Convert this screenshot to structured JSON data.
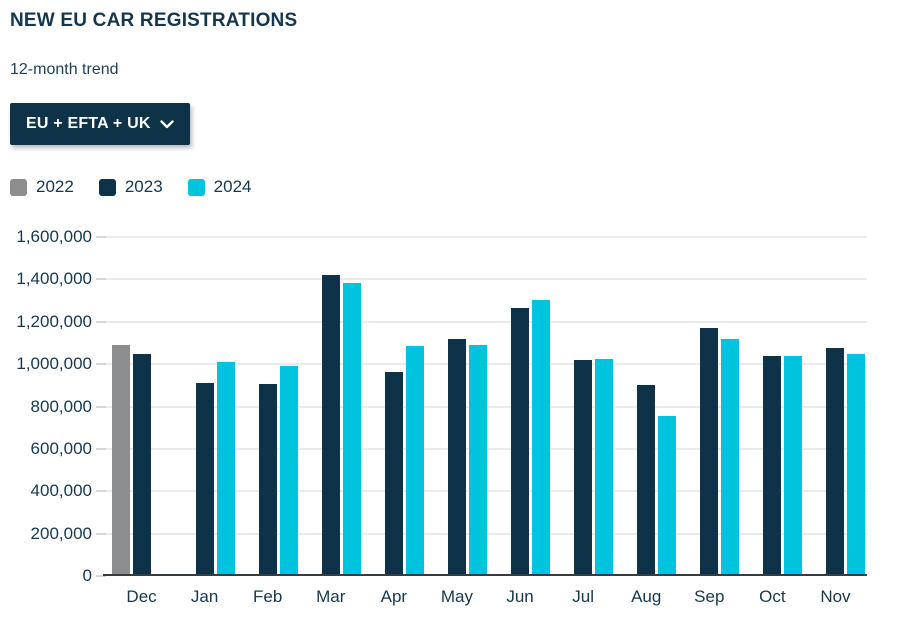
{
  "filter_dropdown": {
    "selected": "EU + EFTA + UK",
    "chevron_icon": "chevron-down"
  },
  "legend": {
    "items": [
      {
        "label": "2022",
        "color": "#8b8d8e"
      },
      {
        "label": "2023",
        "color": "#0e3349"
      },
      {
        "label": "2024",
        "color": "#00c3dd"
      }
    ]
  },
  "chart_data": {
    "type": "bar",
    "title": "NEW EU CAR REGISTRATIONS",
    "subtitle": "12-month trend",
    "region_filter": "EU + EFTA + UK",
    "categories": [
      "Dec",
      "Jan",
      "Feb",
      "Mar",
      "Apr",
      "May",
      "Jun",
      "Jul",
      "Aug",
      "Sep",
      "Oct",
      "Nov"
    ],
    "series": [
      {
        "name": "2022",
        "color": "#8b8d8e",
        "values": [
          1090000,
          null,
          null,
          null,
          null,
          null,
          null,
          null,
          null,
          null,
          null,
          null
        ]
      },
      {
        "name": "2023",
        "color": "#0e3349",
        "values": [
          1050000,
          910000,
          905000,
          1420000,
          965000,
          1120000,
          1265000,
          1020000,
          900000,
          1170000,
          1040000,
          1075000
        ]
      },
      {
        "name": "2024",
        "color": "#00c3dd",
        "values": [
          null,
          1010000,
          990000,
          1385000,
          1085000,
          1090000,
          1305000,
          1025000,
          755000,
          1120000,
          1040000,
          1050000
        ]
      }
    ],
    "xlabel": "",
    "ylabel": "",
    "ylim": [
      0,
      1600000
    ],
    "grid": true,
    "legend_position": "top-left",
    "yticks": [
      {
        "value": 0,
        "label": "0"
      },
      {
        "value": 200000,
        "label": "200,000"
      },
      {
        "value": 400000,
        "label": "400,000"
      },
      {
        "value": 600000,
        "label": "600,000"
      },
      {
        "value": 800000,
        "label": "800,000"
      },
      {
        "value": 1000000,
        "label": "1,000,000"
      },
      {
        "value": 1200000,
        "label": "1,200,000"
      },
      {
        "value": 1400000,
        "label": "1,400,000"
      },
      {
        "value": 1600000,
        "label": "1,600,000"
      }
    ]
  }
}
